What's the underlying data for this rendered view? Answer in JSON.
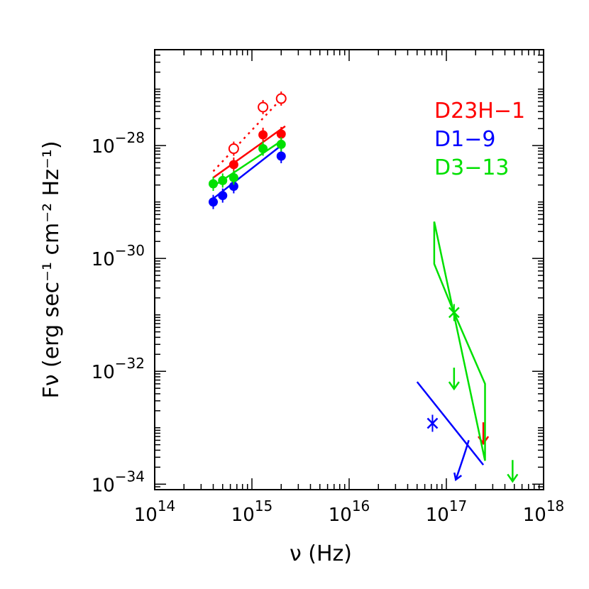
{
  "chart_data": {
    "type": "scatter",
    "xscale": "log",
    "yscale": "log",
    "xlim": [
      100000000000000.0,
      1e+18
    ],
    "ylim": [
      8e-35,
      5e-27
    ],
    "xlabel": "ν (Hz)",
    "ylabel": "Fν (erg sec⁻¹ cm⁻² Hz⁻¹)",
    "xticks": [
      {
        "value": 100000000000000.0,
        "base": "10",
        "exp": "14"
      },
      {
        "value": 1000000000000000.0,
        "base": "10",
        "exp": "15"
      },
      {
        "value": 1e+16,
        "base": "10",
        "exp": "16"
      },
      {
        "value": 1e+17,
        "base": "10",
        "exp": "17"
      },
      {
        "value": 1e+18,
        "base": "10",
        "exp": "18"
      }
    ],
    "yticks": [
      {
        "value": 1e-34,
        "base": "10",
        "exp": "−34"
      },
      {
        "value": 1e-32,
        "base": "10",
        "exp": "−32"
      },
      {
        "value": 1e-30,
        "base": "10",
        "exp": "−30"
      },
      {
        "value": 1e-28,
        "base": "10",
        "exp": "−28"
      }
    ],
    "legend": [
      {
        "name": "D23H−1",
        "color": "#ff0000"
      },
      {
        "name": "D1−9",
        "color": "#0000ff"
      },
      {
        "name": "D3−13",
        "color": "#00e000"
      }
    ],
    "series": [
      {
        "name": "D23H-1",
        "color": "#ff0000",
        "points": [
          [
            650000000000000.0,
            4.6e-29
          ],
          [
            1300000000000000.0,
            1.55e-28
          ],
          [
            2000000000000000.0,
            1.6e-28
          ]
        ],
        "open_points": [
          [
            650000000000000.0,
            8.8e-29
          ],
          [
            1300000000000000.0,
            4.8e-28
          ],
          [
            2000000000000000.0,
            6.8e-28
          ]
        ],
        "fit": [
          [
            400000000000000.0,
            2.7e-29
          ],
          [
            2200000000000000.0,
            2.2e-28
          ]
        ],
        "fit_dotted": [
          [
            400000000000000.0,
            3.5e-29
          ],
          [
            2200000000000000.0,
            8e-28
          ]
        ],
        "upper_limits": [
          [
            2.4e+17,
            7e-34
          ]
        ],
        "x_limit_marks": []
      },
      {
        "name": "D1-9",
        "color": "#0000ff",
        "points": [
          [
            400000000000000.0,
            1e-29
          ],
          [
            500000000000000.0,
            1.3e-29
          ],
          [
            650000000000000.0,
            1.9e-29
          ],
          [
            2000000000000000.0,
            6.5e-29
          ]
        ],
        "open_points": [],
        "fit": [
          [
            400000000000000.0,
            1.15e-29
          ],
          [
            2000000000000000.0,
            1e-28
          ]
        ],
        "xray_line": [
          [
            5e+16,
            6.5e-33
          ],
          [
            2.4e+17,
            2.2e-34
          ]
        ],
        "x_limit_marks": [
          [
            7.2e+16,
            1.2e-33
          ]
        ],
        "curved_arrow": [
          [
            1.7e+17,
            6e-34
          ],
          [
            1.25e+17,
            1.2e-34
          ]
        ],
        "upper_limits": []
      },
      {
        "name": "D3-13",
        "color": "#00e000",
        "points": [
          [
            400000000000000.0,
            2.1e-29
          ],
          [
            500000000000000.0,
            2.4e-29
          ],
          [
            650000000000000.0,
            2.7e-29
          ],
          [
            1300000000000000.0,
            8.8e-29
          ],
          [
            2000000000000000.0,
            1.05e-28
          ]
        ],
        "open_points": [],
        "fit": [
          [
            400000000000000.0,
            1.9e-29
          ],
          [
            2000000000000000.0,
            1.2e-28
          ]
        ],
        "bowtie": [
          [
            7.5e+16,
            4.5e-30
          ],
          [
            7.5e+16,
            8e-31
          ],
          [
            1.2e+17,
            1.1e-31
          ],
          [
            2.5e+17,
            6e-33
          ],
          [
            2.5e+17,
            2.6e-34
          ],
          [
            7.5e+16,
            4.5e-30
          ]
        ],
        "x_limit_marks": [
          [
            1.2e+17,
            1.1e-31
          ]
        ],
        "upper_limits": [
          [
            1.2e+17,
            6.5e-33
          ],
          [
            4.8e+17,
            1.5e-34
          ]
        ]
      }
    ]
  }
}
